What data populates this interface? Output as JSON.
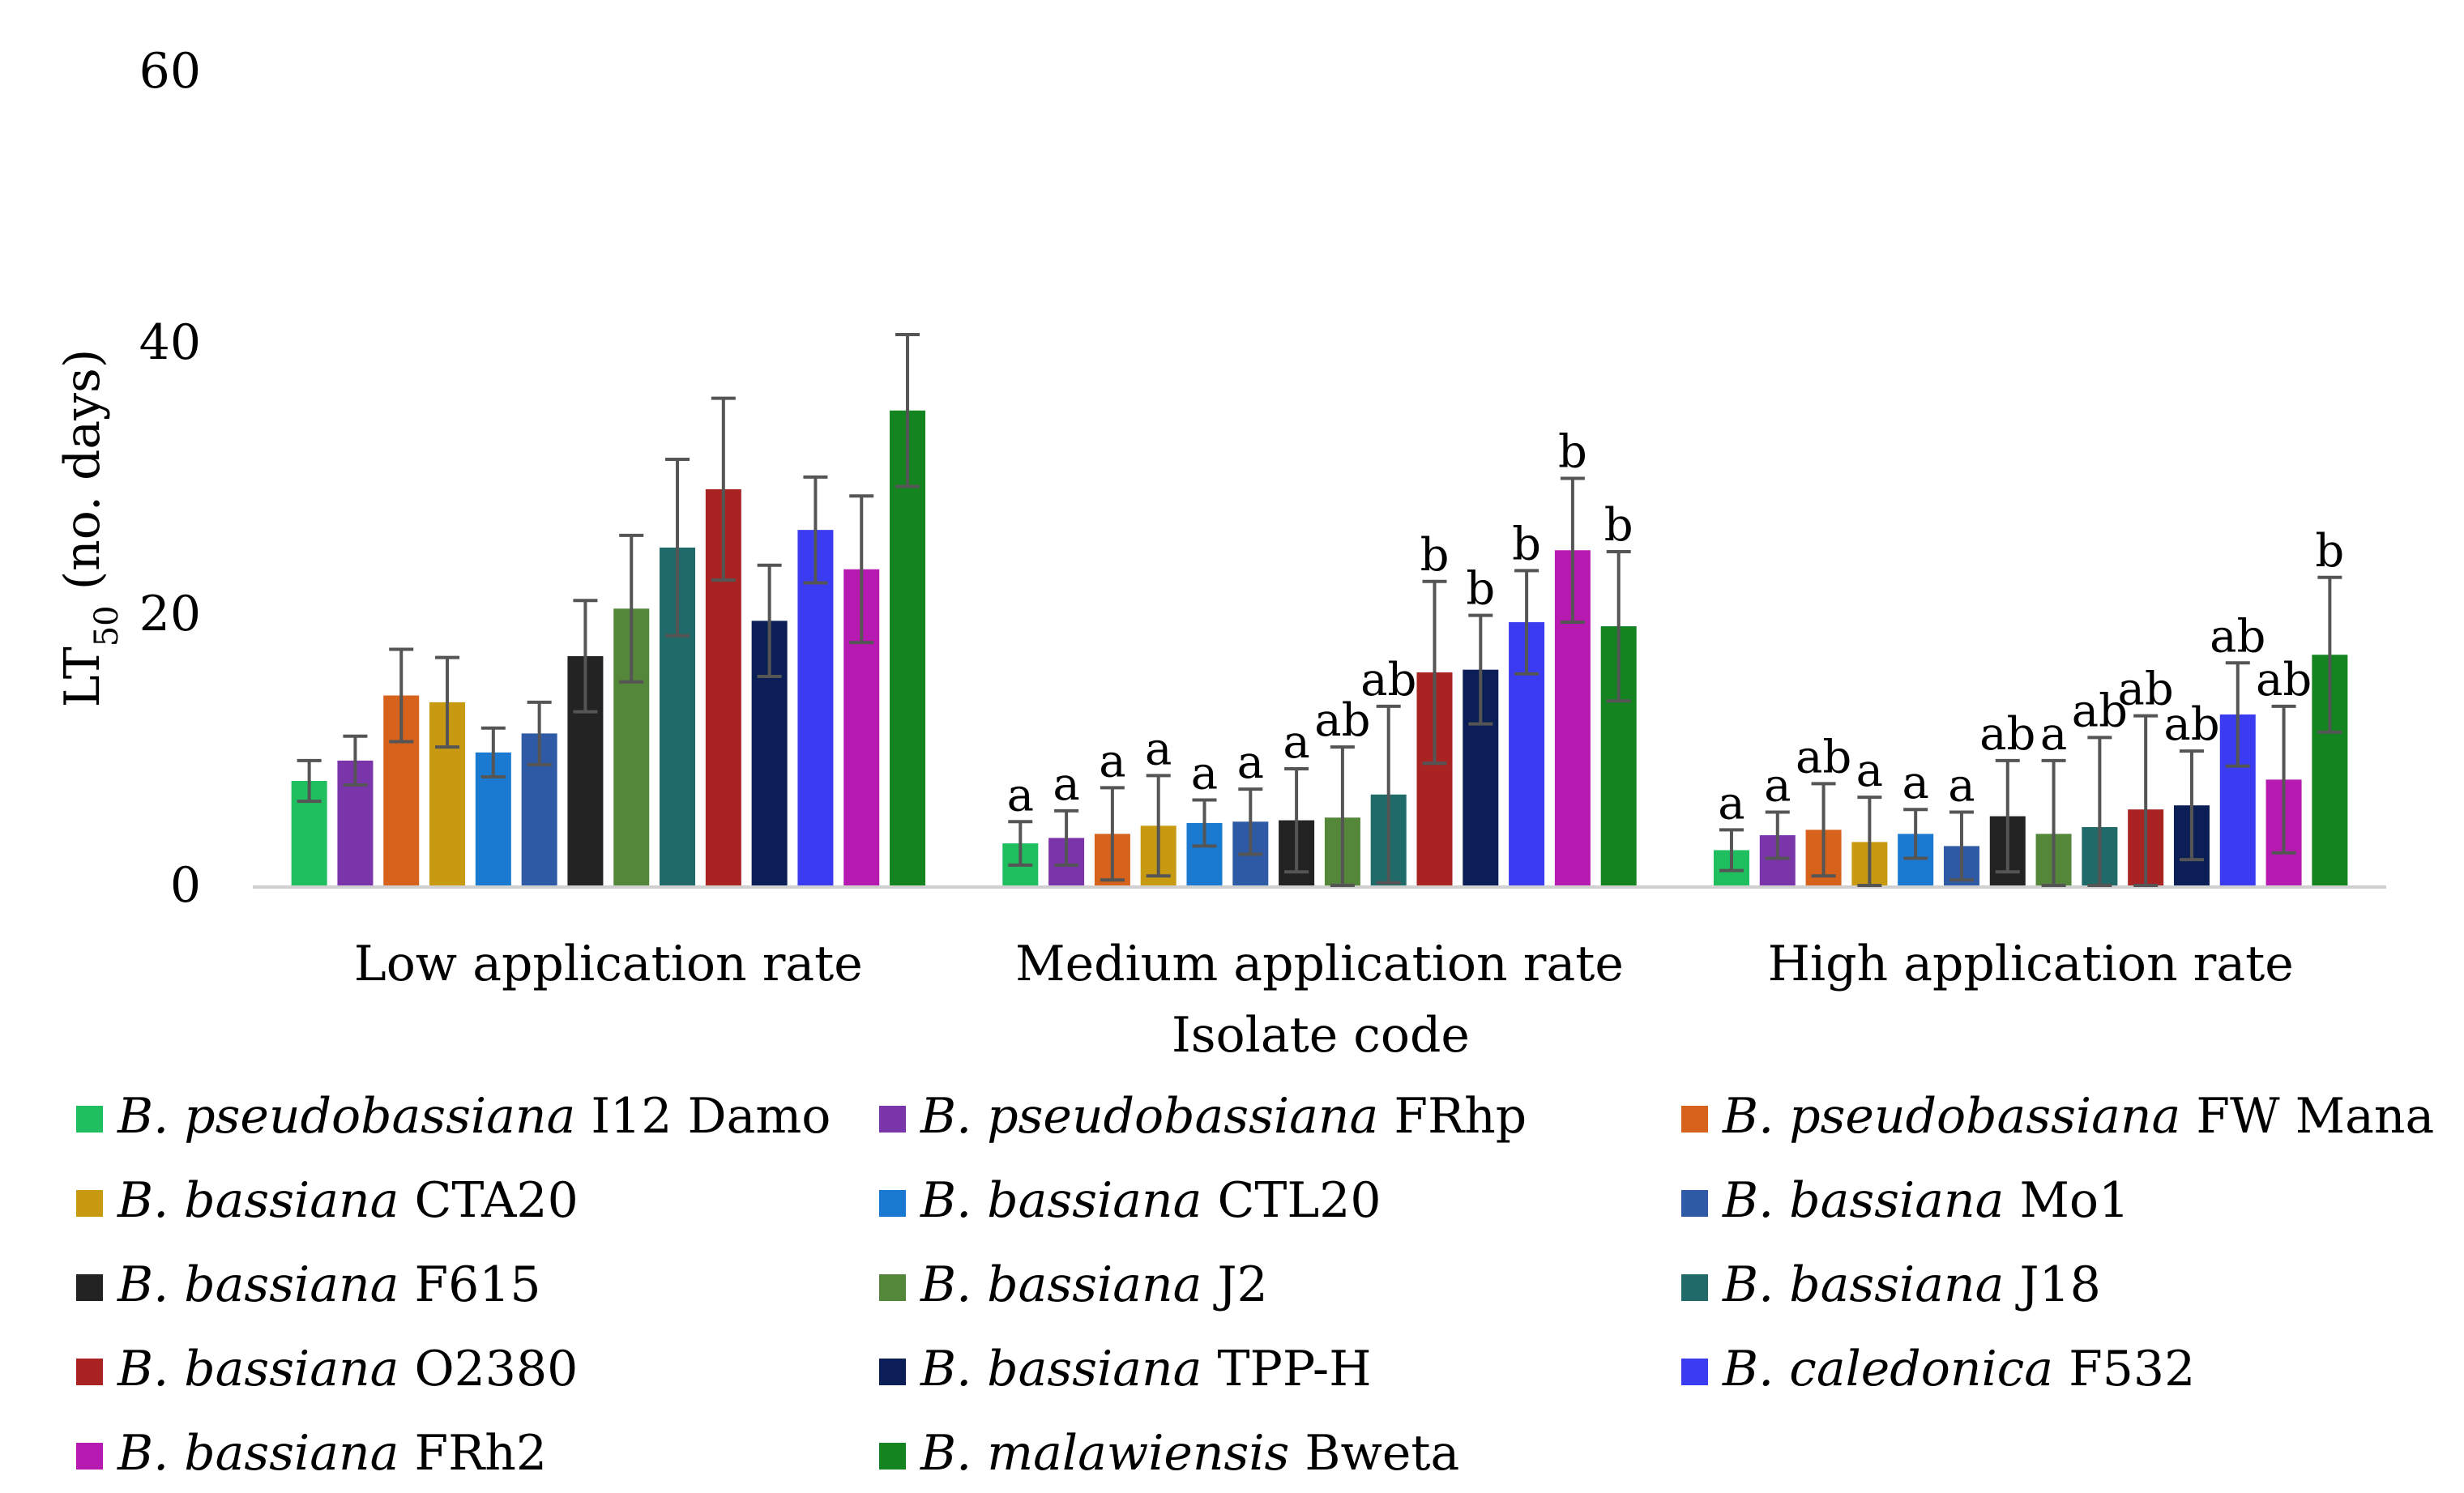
{
  "chart_data": {
    "type": "bar",
    "title": "",
    "xlabel": "Isolate code",
    "ylabel": "LT",
    "ylabel_sub": "50",
    "ylabel_suffix": " (no. days)",
    "ylim": [
      0,
      60
    ],
    "yticks": [
      0,
      20,
      40,
      60
    ],
    "grid": false,
    "legend_position": "bottom",
    "categories": [
      "Low application rate",
      "Medium application rate",
      "High application rate"
    ],
    "series": [
      {
        "genus": "B. pseudobassiana",
        "code": "I12 Damo",
        "color": "#1fbf5f",
        "values": [
          7.7,
          3.1,
          2.6
        ],
        "errors": [
          1.5,
          1.6,
          1.5
        ],
        "labels": [
          "",
          "a",
          "a"
        ]
      },
      {
        "genus": "B. pseudobassiana",
        "code": "FRhp",
        "color": "#7a35aa",
        "values": [
          9.2,
          3.5,
          3.7
        ],
        "errors": [
          1.8,
          2.0,
          1.7
        ],
        "labels": [
          "",
          "a",
          "a"
        ]
      },
      {
        "genus": "B. pseudobassiana",
        "code": "FW Mana",
        "color": "#d7621c",
        "values": [
          14.0,
          3.8,
          4.1
        ],
        "errors": [
          3.4,
          3.4,
          3.4
        ],
        "labels": [
          "",
          "a",
          "ab"
        ]
      },
      {
        "genus": "B. bassiana",
        "code": "CTA20",
        "color": "#c89a12",
        "values": [
          13.5,
          4.4,
          3.2
        ],
        "errors": [
          3.3,
          3.7,
          3.3
        ],
        "labels": [
          "",
          "a",
          "a"
        ]
      },
      {
        "genus": "B. bassiana",
        "code": "CTL20",
        "color": "#1a7ad2",
        "values": [
          9.8,
          4.6,
          3.8
        ],
        "errors": [
          1.8,
          1.7,
          1.8
        ],
        "labels": [
          "",
          "a",
          "a"
        ]
      },
      {
        "genus": "B. bassiana",
        "code": "Mo1",
        "color": "#2f5aa6",
        "values": [
          11.2,
          4.7,
          2.9
        ],
        "errors": [
          2.3,
          2.4,
          2.5
        ],
        "labels": [
          "",
          "a",
          "a"
        ]
      },
      {
        "genus": "B. bassiana",
        "code": "F615",
        "color": "#232323",
        "values": [
          16.9,
          4.8,
          5.1
        ],
        "errors": [
          4.1,
          3.8,
          4.1
        ],
        "labels": [
          "",
          "a",
          "ab"
        ]
      },
      {
        "genus": "B. bassiana",
        "code": "J2",
        "color": "#54873a",
        "values": [
          20.4,
          5.0,
          3.8
        ],
        "errors": [
          5.4,
          5.2,
          5.4
        ],
        "labels": [
          "",
          "ab",
          "a"
        ]
      },
      {
        "genus": "B. bassiana",
        "code": "J18",
        "color": "#216a6a",
        "values": [
          24.9,
          6.7,
          4.3
        ],
        "errors": [
          6.5,
          6.5,
          6.6
        ],
        "labels": [
          "",
          "ab",
          "ab"
        ]
      },
      {
        "genus": "B. bassiana",
        "code": "O2380",
        "color": "#a82322",
        "values": [
          29.2,
          15.7,
          5.6
        ],
        "errors": [
          6.7,
          6.7,
          6.9
        ],
        "labels": [
          "",
          "b",
          "ab"
        ]
      },
      {
        "genus": "B. bassiana",
        "code": "TPP-H",
        "color": "#0b1f56",
        "values": [
          19.5,
          15.9,
          5.9
        ],
        "errors": [
          4.1,
          4.0,
          4.0
        ],
        "labels": [
          "",
          "b",
          "ab"
        ]
      },
      {
        "genus": "B. caledonica",
        "code": "F532",
        "color": "#3b3cf2",
        "values": [
          26.2,
          19.4,
          12.6
        ],
        "errors": [
          3.9,
          3.8,
          3.8
        ],
        "labels": [
          "",
          "b",
          "ab"
        ]
      },
      {
        "genus": "B. bassiana",
        "code": "FRh2",
        "color": "#b61ab0",
        "values": [
          23.3,
          24.7,
          7.8
        ],
        "errors": [
          5.4,
          5.3,
          5.4
        ],
        "labels": [
          "",
          "b",
          "ab"
        ]
      },
      {
        "genus": "B. malawiensis",
        "code": "Bweta",
        "color": "#138420",
        "values": [
          35.0,
          19.1,
          17.0
        ],
        "errors": [
          5.6,
          5.5,
          5.7
        ],
        "labels": [
          "",
          "b",
          "b"
        ]
      }
    ]
  }
}
